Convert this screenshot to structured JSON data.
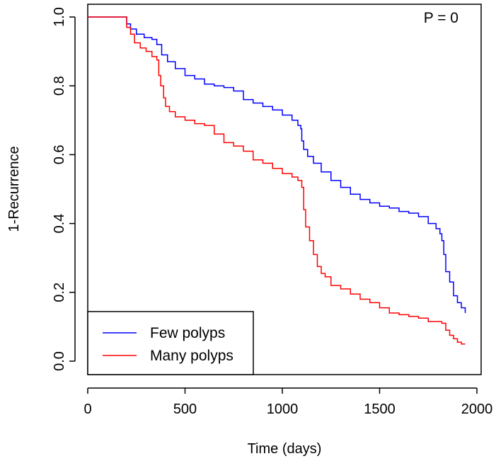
{
  "chart_data": {
    "type": "line",
    "title": "",
    "xlabel": "Time (days)",
    "ylabel": "1-Recurrence",
    "xlim": [
      0,
      2000
    ],
    "ylim": [
      0.0,
      1.0
    ],
    "x_ticks": [
      "0",
      "500",
      "1000",
      "1500",
      "2000"
    ],
    "y_ticks": [
      "0.0",
      "0.2",
      "0.4",
      "0.6",
      "0.8",
      "1.0"
    ],
    "x_tick_values": [
      0,
      500,
      1000,
      1500,
      2000
    ],
    "y_tick_values": [
      0.0,
      0.2,
      0.4,
      0.6,
      0.8,
      1.0
    ],
    "grid": false,
    "legend_position": "bottom-left",
    "annotation": "P =  0",
    "series": [
      {
        "name": "Few polyps",
        "color": "#0000ff",
        "step": true,
        "x": [
          0,
          185,
          200,
          220,
          250,
          290,
          330,
          355,
          380,
          410,
          450,
          500,
          550,
          600,
          650,
          700,
          750,
          800,
          850,
          900,
          950,
          1000,
          1050,
          1080,
          1095,
          1100,
          1110,
          1130,
          1160,
          1200,
          1250,
          1300,
          1350,
          1400,
          1450,
          1500,
          1550,
          1600,
          1650,
          1700,
          1750,
          1790,
          1810,
          1820,
          1830,
          1840,
          1860,
          1880,
          1900,
          1920,
          1940
        ],
        "y": [
          1.0,
          1.0,
          0.98,
          0.965,
          0.95,
          0.94,
          0.935,
          0.92,
          0.89,
          0.87,
          0.85,
          0.83,
          0.82,
          0.805,
          0.8,
          0.795,
          0.785,
          0.76,
          0.75,
          0.74,
          0.73,
          0.715,
          0.7,
          0.685,
          0.675,
          0.64,
          0.615,
          0.595,
          0.575,
          0.55,
          0.525,
          0.505,
          0.485,
          0.47,
          0.46,
          0.45,
          0.445,
          0.435,
          0.43,
          0.42,
          0.4,
          0.385,
          0.37,
          0.35,
          0.31,
          0.26,
          0.23,
          0.19,
          0.17,
          0.155,
          0.14
        ]
      },
      {
        "name": "Many polyps",
        "color": "#ff0000",
        "step": true,
        "x": [
          0,
          185,
          200,
          220,
          240,
          270,
          300,
          330,
          355,
          365,
          375,
          390,
          400,
          420,
          450,
          500,
          550,
          600,
          650,
          700,
          750,
          800,
          850,
          900,
          950,
          1000,
          1050,
          1080,
          1100,
          1110,
          1120,
          1140,
          1160,
          1180,
          1200,
          1220,
          1250,
          1300,
          1350,
          1400,
          1450,
          1500,
          1550,
          1600,
          1650,
          1700,
          1750,
          1820,
          1840,
          1860,
          1880,
          1900,
          1920,
          1940
        ],
        "y": [
          1.0,
          1.0,
          0.97,
          0.95,
          0.925,
          0.91,
          0.9,
          0.885,
          0.875,
          0.83,
          0.8,
          0.765,
          0.74,
          0.725,
          0.71,
          0.7,
          0.69,
          0.685,
          0.66,
          0.635,
          0.625,
          0.61,
          0.585,
          0.575,
          0.56,
          0.545,
          0.535,
          0.525,
          0.505,
          0.44,
          0.39,
          0.35,
          0.31,
          0.275,
          0.255,
          0.245,
          0.22,
          0.21,
          0.195,
          0.18,
          0.17,
          0.155,
          0.14,
          0.135,
          0.13,
          0.125,
          0.115,
          0.11,
          0.09,
          0.075,
          0.065,
          0.055,
          0.05,
          0.05
        ]
      }
    ]
  }
}
